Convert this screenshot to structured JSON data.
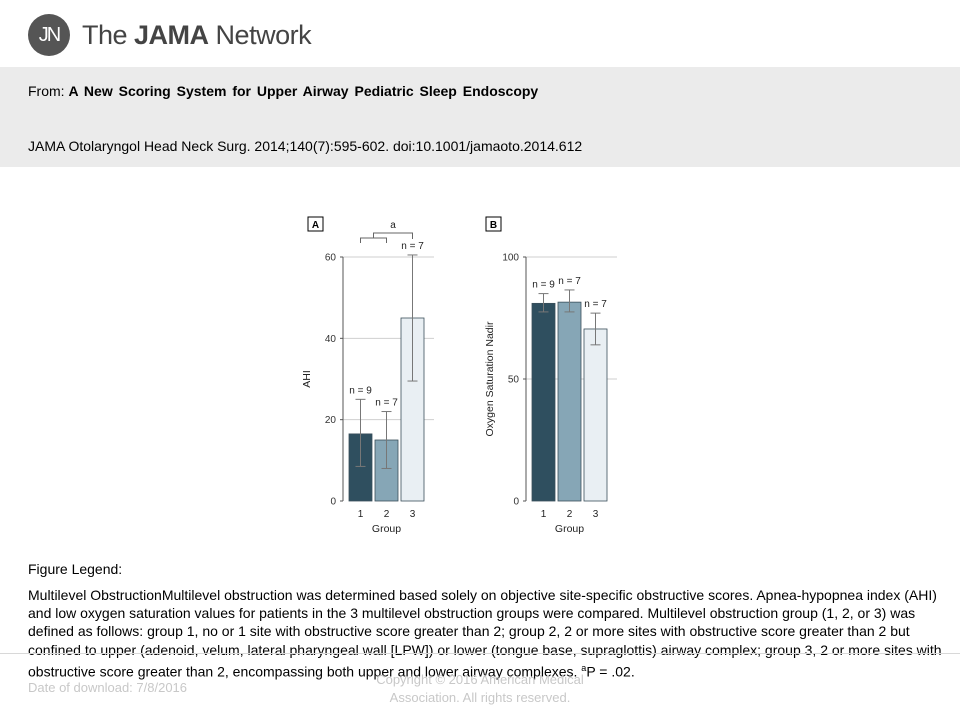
{
  "header": {
    "logo_initials": "JN",
    "logo_prefix": "The ",
    "logo_bold": "JAMA",
    "logo_suffix": " Network",
    "from_label": "From:",
    "article_title": "A New Scoring System for Upper Airway Pediatric Sleep Endoscopy",
    "citation": "JAMA Otolaryngol Head Neck Surg. 2014;140(7):595-602. doi:10.1001/jamaoto.2014.612"
  },
  "chart_data": [
    {
      "panel": "A",
      "type": "bar",
      "categories": [
        "1",
        "2",
        "3"
      ],
      "values": [
        16.5,
        15,
        45
      ],
      "error_low": [
        8.5,
        8,
        29.5
      ],
      "error_high": [
        25,
        22,
        60.5
      ],
      "n_labels": [
        "n = 9",
        "n = 7",
        "n = 7"
      ],
      "colors": [
        "#2f4f5f",
        "#86a6b6",
        "#e9eff3"
      ],
      "ylabel": "AHI",
      "xlabel": "Group",
      "ylim": [
        0,
        60
      ],
      "yticks": [
        "0",
        "20",
        "40",
        "60"
      ],
      "annotation": "a",
      "grid": true
    },
    {
      "panel": "B",
      "type": "bar",
      "categories": [
        "1",
        "2",
        "3"
      ],
      "values": [
        81,
        81.5,
        70.5
      ],
      "error_low": [
        77.5,
        77.5,
        64
      ],
      "error_high": [
        85,
        86.5,
        77
      ],
      "n_labels": [
        "n = 9",
        "n = 7",
        "n = 7"
      ],
      "colors": [
        "#2f4f5f",
        "#86a6b6",
        "#e9eff3"
      ],
      "ylabel": "Oxygen Saturation Nadir",
      "xlabel": "Group",
      "ylim": [
        0,
        100
      ],
      "yticks": [
        "0",
        "50",
        "100"
      ],
      "grid": true
    }
  ],
  "legend": {
    "heading": "Figure Legend:",
    "body": "Multilevel ObstructionMultilevel obstruction was determined based solely on objective site-specific obstructive scores. Apnea-hypopnea index (AHI) and low oxygen saturation values for patients in the 3 multilevel obstruction groups were compared. Multilevel obstruction group (1, 2, or 3) was defined as follows: group 1, no or 1 site with obstructive score greater than 2; group 2, 2 or more sites with obstructive score greater than 2 but confined to upper (adenoid, velum, lateral pharyngeal wall [LPW]) or lower (tongue base, supraglottis) airway complex; group 3, 2 or more sites with obstructive score greater than 2, encompassing both upper and lower airway complexes.",
    "footnote_mark": "a",
    "footnote_text": "P = .02."
  },
  "footer": {
    "date": "Date of download:  7/8/2016",
    "copyright_line1": "Copyright © 2016 American Medical",
    "copyright_line2": "Association. All rights reserved."
  }
}
